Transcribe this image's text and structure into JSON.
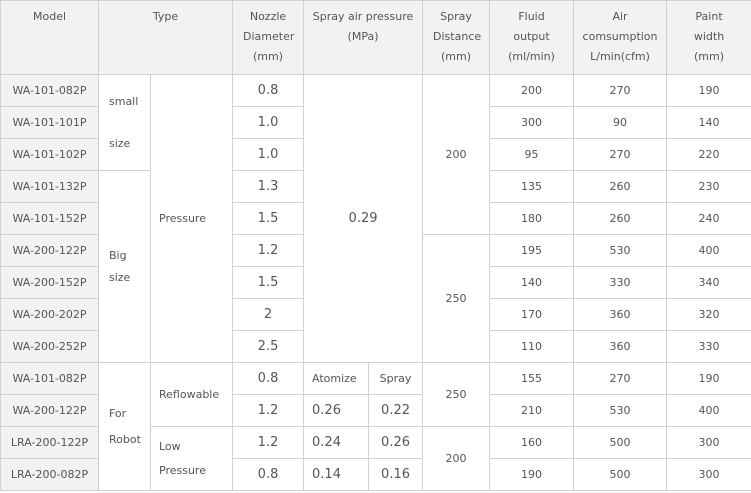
{
  "headers": {
    "model": "Model",
    "type": "Type",
    "nozzle": "Nozzle Diameter (mm)",
    "pressure": "Spray air pressure (MPa)",
    "distance": "Spray Distance (mm)",
    "fluid": "Fluid output (ml/min)",
    "air": "Air comsumption L/min(cfm)",
    "paint": "Paint width (mm)"
  },
  "groups": {
    "small": "small",
    "size": "size",
    "big": "Big",
    "big_size": "size",
    "pressure": "Pressure",
    "for": "For",
    "robot": "Robot",
    "reflowable": "Reflowable",
    "low": "Low",
    "low_pressure": "Pressure",
    "atomize": "Atomize",
    "spray": "Spray",
    "shared_pressure": "0.29",
    "dist_200": "200",
    "dist_250": "250",
    "robot_dist_250": "250",
    "robot_dist_200": "200"
  },
  "rows": [
    {
      "model": "WA-101-082P",
      "nozzle": "0.8",
      "fluid": "200",
      "air": "270",
      "paint": "190"
    },
    {
      "model": "WA-101-101P",
      "nozzle": "1.0",
      "fluid": "300",
      "air": "90",
      "paint": "140"
    },
    {
      "model": "WA-101-102P",
      "nozzle": "1.0",
      "fluid": "95",
      "air": "270",
      "paint": "220"
    },
    {
      "model": "WA-101-132P",
      "nozzle": "1.3",
      "fluid": "135",
      "air": "260",
      "paint": "230"
    },
    {
      "model": "WA-101-152P",
      "nozzle": "1.5",
      "fluid": "180",
      "air": "260",
      "paint": "240"
    },
    {
      "model": "WA-200-122P",
      "nozzle": "1.2",
      "fluid": "195",
      "air": "530",
      "paint": "400"
    },
    {
      "model": "WA-200-152P",
      "nozzle": "1.5",
      "fluid": "140",
      "air": "330",
      "paint": "340"
    },
    {
      "model": "WA-200-202P",
      "nozzle": "2",
      "fluid": "170",
      "air": "360",
      "paint": "320"
    },
    {
      "model": "WA-200-252P",
      "nozzle": "2.5",
      "fluid": "110",
      "air": "360",
      "paint": "330"
    },
    {
      "model": "WA-101-082P",
      "nozzle": "0.8",
      "fluid": "155",
      "air": "270",
      "paint": "190"
    },
    {
      "model": "WA-200-122P",
      "nozzle": "1.2",
      "atomize": "0.26",
      "spray": "0.22",
      "fluid": "210",
      "air": "530",
      "paint": "400"
    },
    {
      "model": "LRA-200-122P",
      "nozzle": "1.2",
      "atomize": "0.24",
      "spray": "0.26",
      "fluid": "160",
      "air": "500",
      "paint": "300"
    },
    {
      "model": "LRA-200-082P",
      "nozzle": "0.8",
      "atomize": "0.14",
      "spray": "0.16",
      "fluid": "190",
      "air": "500",
      "paint": "300"
    }
  ]
}
